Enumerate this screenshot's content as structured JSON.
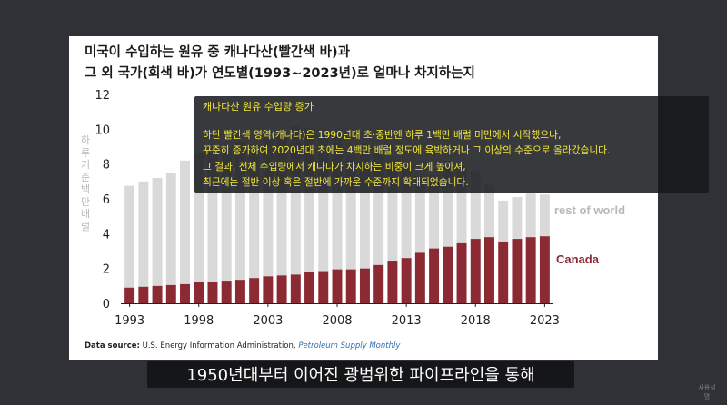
{
  "title_lines": [
    "미국이 수입하는 원유 중 캐나다산(빨간색 바)과",
    "그 외 국가(회색 바)가 연도별(1993~2023년)로 얼마나 차지하는지"
  ],
  "source": {
    "label": "Data source:",
    "org": "U.S. Energy Information Administration,",
    "publication": "Petroleum Supply Monthly"
  },
  "overlay": {
    "heading": "캐나다산 원유 수입량 증가",
    "lines": [
      "하단 빨간색 영역(캐나다)은 1990년대 초·중반엔 하루 1백만 배럴 미만에서 시작했으나,",
      "꾸준히 증가하여 2020년대 초에는 4백만 배럴 정도에 육박하거나 그 이상의 수준으로 올라갔습니다.",
      "그 결과, 전체 수입량에서 캐나다가 차지하는 비중이 크게 높아져,",
      "최근에는 절반 이상 혹은 절반에 가까운 수준까지 확대되었습니다."
    ]
  },
  "subtitle": "1950년대부터 이어진 광범위한 파이프라인을 통해",
  "logo_text": "사용설명",
  "chart_data": {
    "type": "bar",
    "stacked": true,
    "ylabel": "하루 기준 백만배럴",
    "ylim": [
      0,
      12
    ],
    "yticks": [
      0,
      2,
      4,
      6,
      8,
      10,
      12
    ],
    "xticks": [
      "1993",
      "1998",
      "2003",
      "2008",
      "2013",
      "2018",
      "2023"
    ],
    "categories": [
      "1993",
      "1994",
      "1995",
      "1996",
      "1997",
      "1998",
      "1999",
      "2000",
      "2001",
      "2002",
      "2003",
      "2004",
      "2005",
      "2006",
      "2007",
      "2008",
      "2009",
      "2010",
      "2011",
      "2012",
      "2013",
      "2014",
      "2015",
      "2016",
      "2017",
      "2018",
      "2019",
      "2020",
      "2021",
      "2022",
      "2023"
    ],
    "series": [
      {
        "name": "Canada",
        "color": "#8b2a32",
        "values": [
          0.9,
          0.95,
          1.0,
          1.05,
          1.1,
          1.2,
          1.2,
          1.3,
          1.35,
          1.45,
          1.55,
          1.6,
          1.65,
          1.8,
          1.85,
          1.95,
          1.95,
          2.0,
          2.2,
          2.45,
          2.6,
          2.9,
          3.15,
          3.25,
          3.45,
          3.7,
          3.8,
          3.55,
          3.7,
          3.8,
          3.85
        ]
      },
      {
        "name": "rest of world",
        "color": "#d9d9d9",
        "values": [
          5.85,
          6.05,
          6.2,
          6.45,
          7.1,
          7.4,
          7.5,
          7.6,
          7.95,
          7.3,
          7.9,
          8.25,
          8.5,
          8.25,
          7.95,
          7.75,
          6.55,
          7.2,
          6.7,
          5.75,
          5.2,
          4.4,
          4.2,
          4.6,
          4.4,
          3.9,
          3.0,
          2.35,
          2.4,
          2.5,
          2.4
        ]
      }
    ]
  }
}
